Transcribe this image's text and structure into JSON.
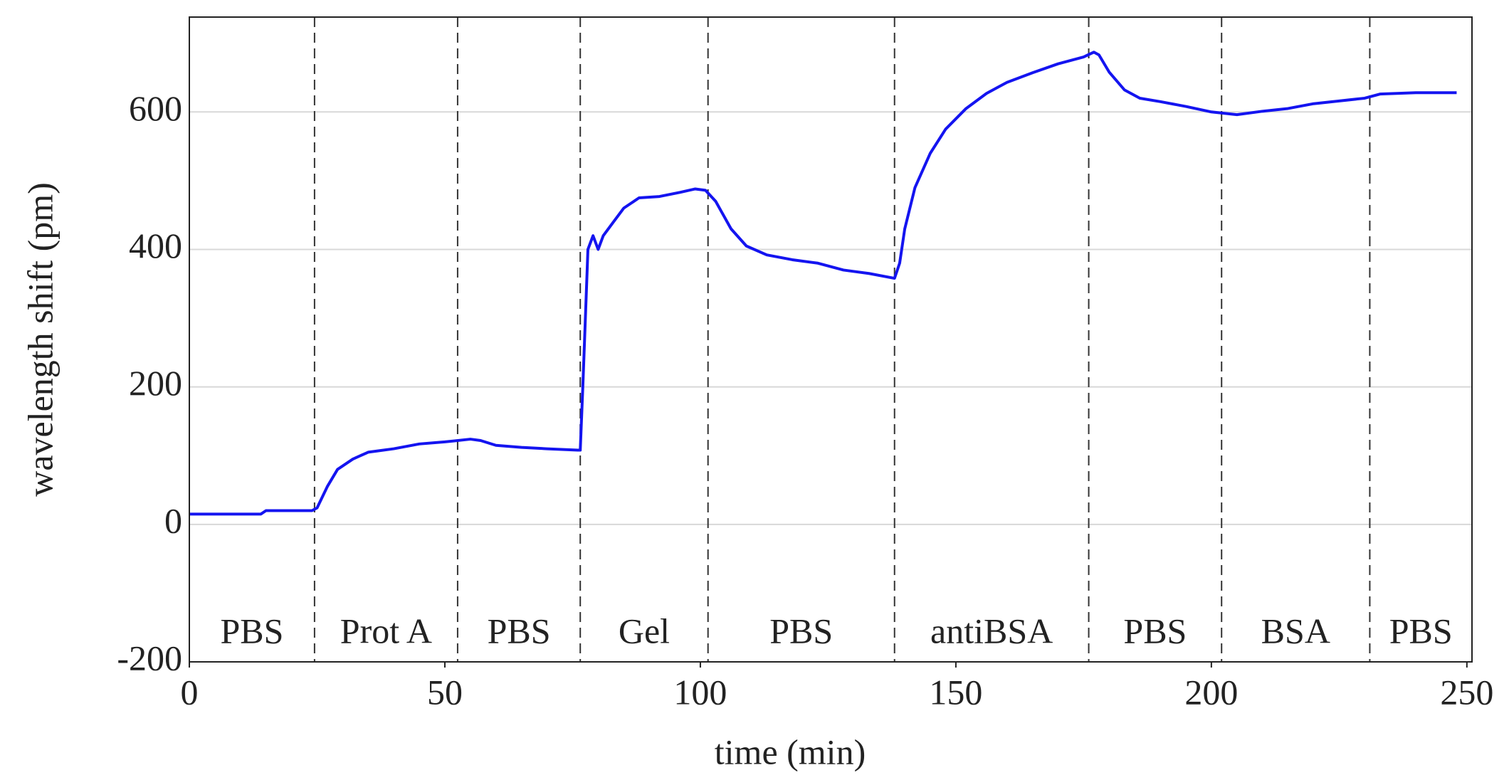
{
  "chart_data": {
    "type": "line",
    "x_label": "time (min)",
    "y_label": "wavelength shift (pm)",
    "xlim": [
      0,
      251
    ],
    "ylim": [
      -200,
      738
    ],
    "xticks": [
      0,
      50,
      100,
      150,
      200,
      250
    ],
    "yticks": [
      -200,
      0,
      200,
      400,
      600
    ],
    "grid": true,
    "phase_boundaries": [
      24.5,
      52.5,
      76.5,
      101.5,
      138,
      176,
      202,
      231
    ],
    "phase_labels": [
      "PBS",
      "Prot A",
      "PBS",
      "Gel",
      "PBS",
      "antiBSA",
      "PBS",
      "BSA",
      "PBS"
    ],
    "series": [
      {
        "name": "wavelength shift",
        "color": "#1414f0",
        "x": [
          0,
          14,
          15,
          24,
          25,
          27,
          29,
          32,
          35,
          40,
          45,
          50,
          55,
          57,
          60,
          65,
          70,
          76,
          76.5,
          77,
          78,
          79,
          80,
          81,
          83,
          85,
          88,
          92,
          96,
          99,
          101,
          103,
          106,
          109,
          113,
          118,
          123,
          128,
          133,
          138,
          139,
          140,
          142,
          145,
          148,
          152,
          156,
          160,
          165,
          170,
          175,
          177,
          178,
          180,
          183,
          186,
          190,
          195,
          200,
          205,
          210,
          215,
          220,
          225,
          230,
          233,
          240,
          248
        ],
        "values": [
          15,
          15,
          20,
          20,
          24,
          55,
          80,
          95,
          105,
          110,
          117,
          120,
          124,
          122,
          115,
          112,
          110,
          108,
          108,
          200,
          400,
          420,
          400,
          420,
          440,
          460,
          475,
          477,
          483,
          488,
          486,
          470,
          430,
          405,
          392,
          385,
          380,
          370,
          365,
          358,
          380,
          430,
          490,
          540,
          575,
          605,
          627,
          643,
          657,
          670,
          680,
          687,
          683,
          658,
          632,
          620,
          615,
          608,
          600,
          596,
          601,
          605,
          612,
          616,
          620,
          626,
          628,
          628
        ]
      }
    ]
  }
}
